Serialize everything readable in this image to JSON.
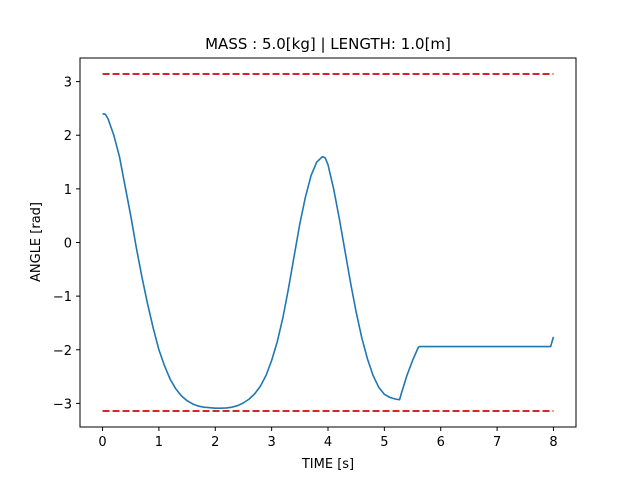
{
  "chart_data": {
    "type": "line",
    "title": "MASS : 5.0[kg] | LENGTH: 1.0[m]",
    "xlabel": "TIME [s]",
    "ylabel": "ANGLE [rad]",
    "xlim": [
      -0.4,
      8.4
    ],
    "ylim": [
      -3.44,
      3.44
    ],
    "xticks": [
      0,
      1,
      2,
      3,
      4,
      5,
      6,
      7,
      8
    ],
    "yticks": [
      -3,
      -2,
      -1,
      0,
      1,
      2,
      3
    ],
    "grid": false,
    "colors": {
      "series": "#1f77b4",
      "limit": "#d62728",
      "axis": "#000000",
      "background": "#ffffff"
    },
    "series": [
      {
        "style": "solid",
        "x": [
          0.0,
          0.05,
          0.1,
          0.2,
          0.3,
          0.4,
          0.5,
          0.6,
          0.7,
          0.8,
          0.9,
          1.0,
          1.1,
          1.2,
          1.3,
          1.4,
          1.5,
          1.6,
          1.7,
          1.8,
          1.9,
          2.0,
          2.1,
          2.2,
          2.3,
          2.4,
          2.5,
          2.6,
          2.7,
          2.8,
          2.9,
          3.0,
          3.1,
          3.2,
          3.3,
          3.4,
          3.5,
          3.6,
          3.7,
          3.8,
          3.9,
          3.95,
          4.0,
          4.1,
          4.2,
          4.3,
          4.4,
          4.5,
          4.6,
          4.7,
          4.8,
          4.9,
          5.0,
          5.1,
          5.2,
          5.27,
          5.3,
          5.4,
          5.5,
          5.6,
          5.62,
          6.0,
          7.0,
          7.5,
          7.95,
          8.0
        ],
        "y": [
          2.4,
          2.39,
          2.3,
          2.0,
          1.6,
          1.05,
          0.5,
          -0.1,
          -0.65,
          -1.15,
          -1.6,
          -2.0,
          -2.3,
          -2.55,
          -2.73,
          -2.86,
          -2.95,
          -3.01,
          -3.05,
          -3.07,
          -3.08,
          -3.09,
          -3.09,
          -3.085,
          -3.07,
          -3.04,
          -2.99,
          -2.92,
          -2.82,
          -2.68,
          -2.48,
          -2.2,
          -1.85,
          -1.4,
          -0.85,
          -0.25,
          0.35,
          0.85,
          1.25,
          1.5,
          1.6,
          1.58,
          1.45,
          1.0,
          0.45,
          -0.15,
          -0.75,
          -1.3,
          -1.78,
          -2.17,
          -2.48,
          -2.7,
          -2.83,
          -2.89,
          -2.92,
          -2.93,
          -2.82,
          -2.48,
          -2.2,
          -1.96,
          -1.94,
          -1.94,
          -1.94,
          -1.94,
          -1.94,
          -1.76
        ]
      },
      {
        "style": "dashed",
        "x": [
          0,
          8
        ],
        "y": [
          3.14159,
          3.14159
        ]
      },
      {
        "style": "dashed",
        "x": [
          0,
          8
        ],
        "y": [
          -3.14159,
          -3.14159
        ]
      }
    ]
  }
}
